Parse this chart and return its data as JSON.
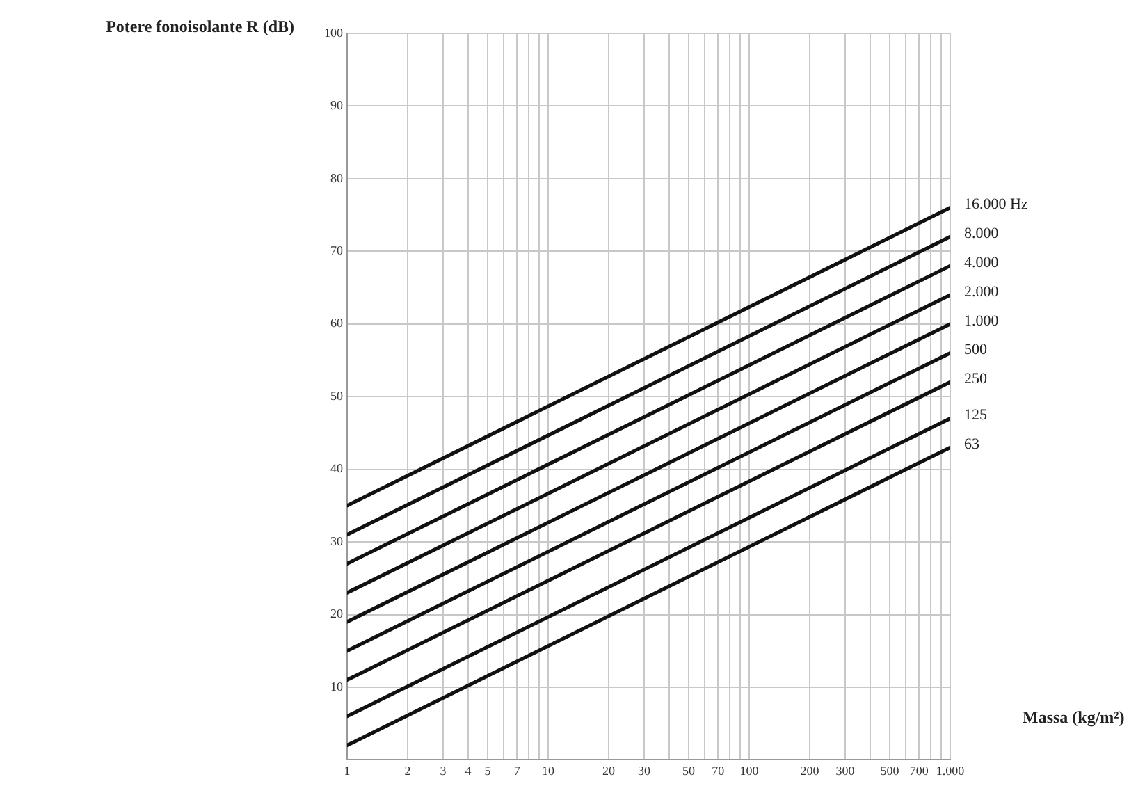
{
  "chart_data": {
    "type": "line",
    "xlabel": "Massa (kg/m²)",
    "ylabel": "Potere fonoisolante R (dB)",
    "x": [
      1,
      1000
    ],
    "log": "x",
    "xlim": [
      1,
      1000
    ],
    "xticks": [
      1,
      2,
      3,
      4,
      5,
      {
        "value": 6,
        "label": null
      },
      7,
      {
        "value": 8,
        "label": null
      },
      {
        "value": 9,
        "label": null
      },
      10,
      20,
      30,
      {
        "value": 40,
        "label": null
      },
      50,
      {
        "value": 60,
        "label": null
      },
      70,
      {
        "value": 80,
        "label": null
      },
      {
        "value": 90,
        "label": null
      },
      100,
      200,
      300,
      {
        "value": 400,
        "label": null
      },
      500,
      {
        "value": 600,
        "label": null
      },
      700,
      {
        "value": 800,
        "label": null
      },
      {
        "value": 900,
        "label": null
      },
      {
        "value": 1000,
        "label": "1.000"
      }
    ],
    "ylim": [
      0,
      100
    ],
    "yticks": [
      {
        "value": 0,
        "label": null
      },
      10,
      20,
      30,
      40,
      50,
      60,
      70,
      80,
      90,
      100
    ],
    "grid": true,
    "legend": false,
    "marker": "none",
    "line_style": "solid",
    "series": [
      {
        "name": "16.000 Hz",
        "color": "#111111",
        "values": [
          35,
          76
        ]
      },
      {
        "name": "8.000",
        "color": "#111111",
        "values": [
          31,
          72
        ]
      },
      {
        "name": "4.000",
        "color": "#111111",
        "values": [
          27,
          68
        ]
      },
      {
        "name": "2.000",
        "color": "#111111",
        "values": [
          23,
          64
        ]
      },
      {
        "name": "1.000",
        "color": "#111111",
        "values": [
          19,
          60
        ]
      },
      {
        "name": "500",
        "color": "#111111",
        "values": [
          15,
          56
        ]
      },
      {
        "name": "250",
        "color": "#111111",
        "values": [
          11,
          52
        ]
      },
      {
        "name": "125",
        "color": "#111111",
        "values": [
          6,
          47
        ]
      },
      {
        "name": "63",
        "color": "#111111",
        "values": [
          2,
          43
        ]
      }
    ]
  }
}
